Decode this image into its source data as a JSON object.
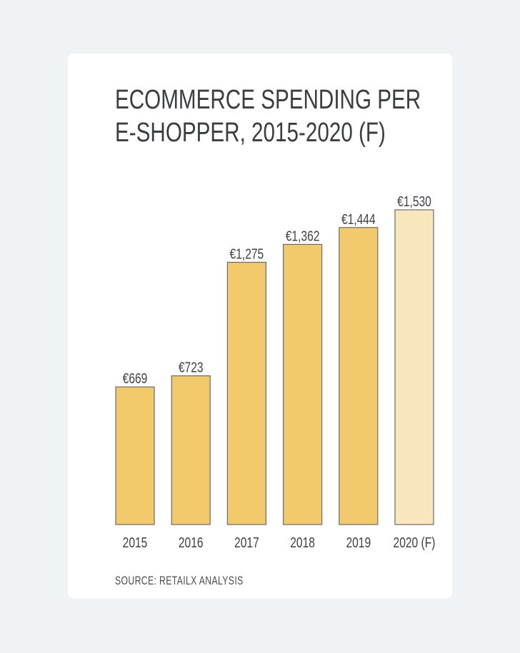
{
  "chart_data": {
    "type": "bar",
    "title_lines": [
      "ECOMMERCE SPENDING PER",
      "E-SHOPPER, 2015-2020 (F)"
    ],
    "categories": [
      "2015",
      "2016",
      "2017",
      "2018",
      "2019",
      "2020 (F)"
    ],
    "values": [
      669,
      723,
      1275,
      1362,
      1444,
      1530
    ],
    "value_labels": [
      "€669",
      "€723",
      "€1,275",
      "€1,362",
      "€1,444",
      "€1,530"
    ],
    "forecast_flags": [
      false,
      false,
      false,
      false,
      false,
      true
    ],
    "xlabel": "",
    "ylabel": "",
    "grid": false,
    "legend": "none",
    "colors": {
      "actual": "#f2c96b",
      "forecast": "#f8e6bd",
      "outline": "#6b6b6b"
    }
  },
  "source": "SOURCE: RETAILX ANALYSIS"
}
